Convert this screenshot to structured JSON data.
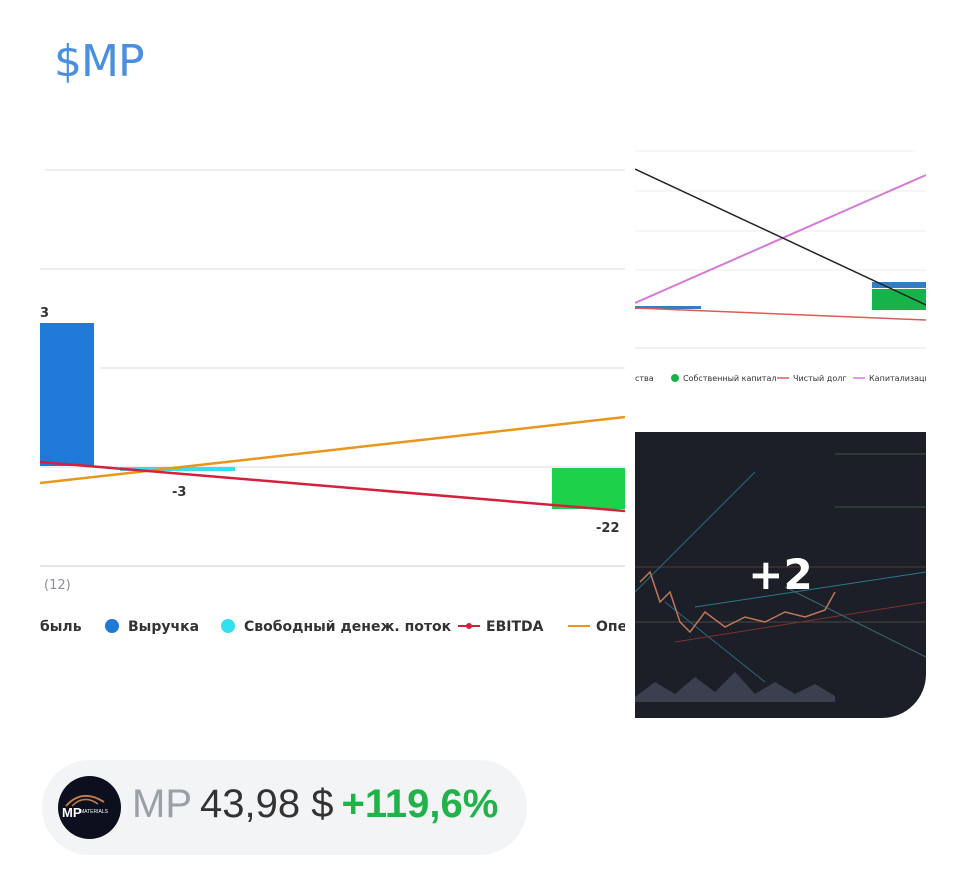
{
  "post": {
    "title": "$MP"
  },
  "images": [
    {
      "labels": {
        "top_value": "3",
        "fcf_value": "-3",
        "right_value": "-22",
        "axis_label": "(12)"
      },
      "legend": [
        "быль",
        "Выручка",
        "Свободный денеж. поток",
        "EBITDA",
        "Опе"
      ],
      "colors": {
        "revenue": "#1e7ad6",
        "fcf": "#33e0ee",
        "ebitda": "#d4203c",
        "operating": "#e8961c",
        "green_bar": "#1ed14a"
      }
    },
    {
      "legend": [
        "ства",
        "Собственный капитал",
        "Чистый долг",
        "Капитализация"
      ],
      "colors": {
        "equity": "#17b34a",
        "net_debt": "#e05a55",
        "cap": "#d67ad8",
        "black_line": "#222222"
      }
    },
    {
      "more_count": "+2"
    }
  ],
  "ticker": {
    "symbol": "MP",
    "price": "43,98 $",
    "change": "+119,6%",
    "logo_text": "MP",
    "logo_sub": "MATERIALS",
    "change_color": "#21b24a"
  }
}
